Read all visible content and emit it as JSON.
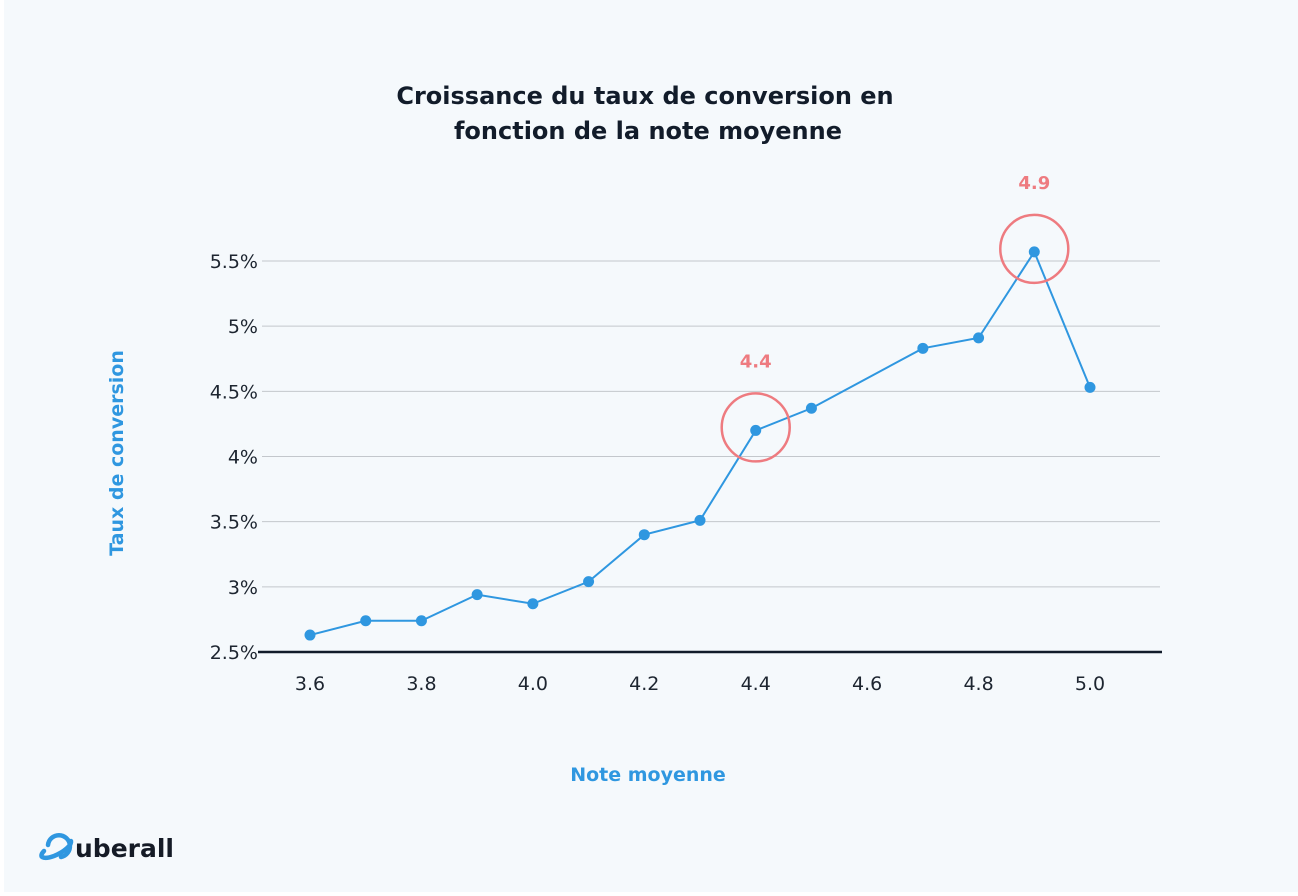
{
  "chart_data": {
    "type": "line",
    "title": [
      "Croissance du taux de conversion en",
      "fonction de la note moyenne"
    ],
    "xlabel": "Note moyenne",
    "ylabel": "Taux de conversion",
    "xlim": [
      3.5,
      5.1
    ],
    "ylim": [
      2.5,
      5.5
    ],
    "x_ticks": [
      3.6,
      3.8,
      4.0,
      4.2,
      4.4,
      4.6,
      4.8,
      5.0
    ],
    "x_tick_labels": [
      "3.6",
      "3.8",
      "4.0",
      "4.2",
      "4.4",
      "4.6",
      "4.8",
      "5.0"
    ],
    "y_ticks": [
      2.5,
      3,
      3.5,
      4,
      4.5,
      5,
      5.5
    ],
    "y_tick_labels": [
      "2.5%",
      "3%",
      "3.5%",
      "4%",
      "4.5%",
      "5%",
      "5.5%"
    ],
    "grid": "horizontal",
    "x": [
      3.6,
      3.7,
      3.8,
      3.9,
      4.0,
      4.1,
      4.2,
      4.3,
      4.4,
      4.5,
      4.7,
      4.8,
      4.9,
      5.0
    ],
    "values": [
      2.63,
      2.74,
      2.74,
      2.94,
      2.87,
      3.04,
      3.4,
      3.51,
      4.2,
      4.37,
      4.83,
      4.91,
      5.57,
      4.53
    ],
    "annotations": [
      {
        "x": 4.4,
        "y": 4.2,
        "label": "4.4"
      },
      {
        "x": 4.9,
        "y": 5.57,
        "label": "4.9"
      }
    ],
    "colors": {
      "line": "#2f97e0",
      "highlight": "#ee7b80",
      "grid": "#c3c7cc",
      "axis": "#121c2a"
    }
  },
  "brand": {
    "logo_text": "uberall",
    "logo_icon": "planet-icon"
  }
}
